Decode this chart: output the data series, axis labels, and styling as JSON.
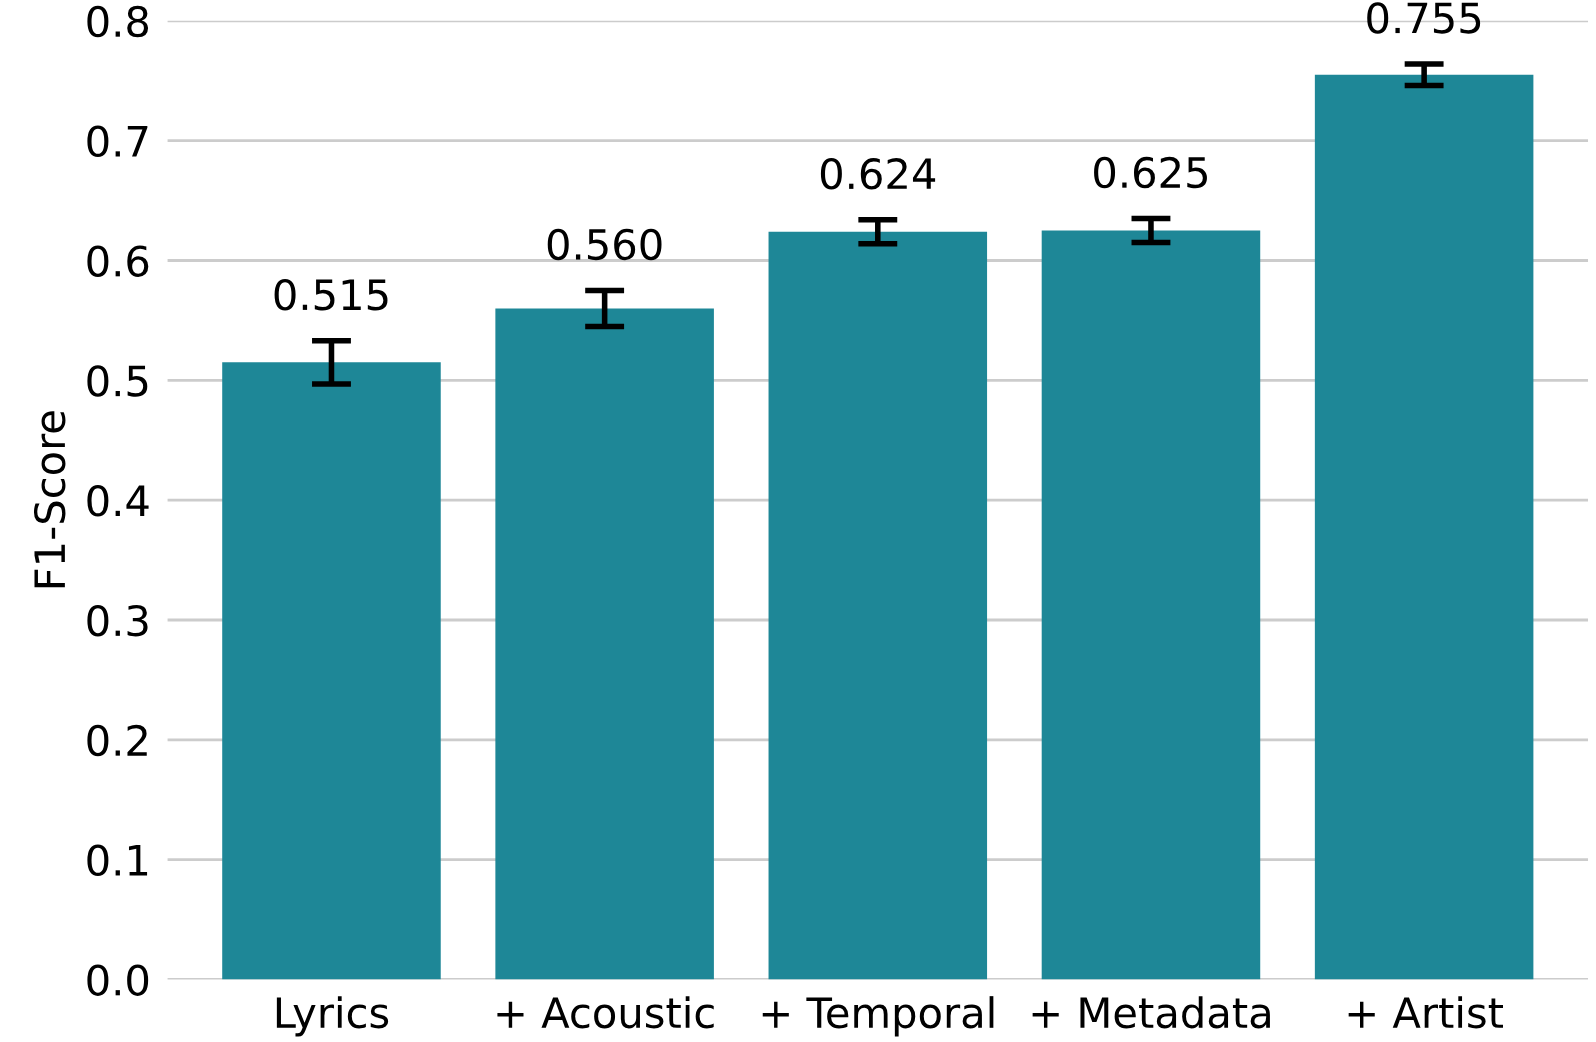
{
  "chart_data": {
    "type": "bar",
    "ylabel": "F1-Score",
    "categories": [
      "Lyrics",
      "+ Acoustic",
      "+ Temporal",
      "+ Metadata",
      "+ Artist"
    ],
    "values": [
      0.515,
      0.56,
      0.624,
      0.625,
      0.755
    ],
    "errors": [
      0.018,
      0.015,
      0.01,
      0.01,
      0.009
    ],
    "value_labels": [
      "0.515",
      "0.560",
      "0.624",
      "0.625",
      "0.755"
    ],
    "color": "#1e8797",
    "ylim": [
      0,
      0.8
    ],
    "yticks": [
      {
        "value": 0,
        "label": "0.0"
      },
      0.1,
      0.2,
      0.3,
      0.4,
      0.5,
      0.6,
      0.7,
      0.8
    ],
    "grid": "y"
  }
}
